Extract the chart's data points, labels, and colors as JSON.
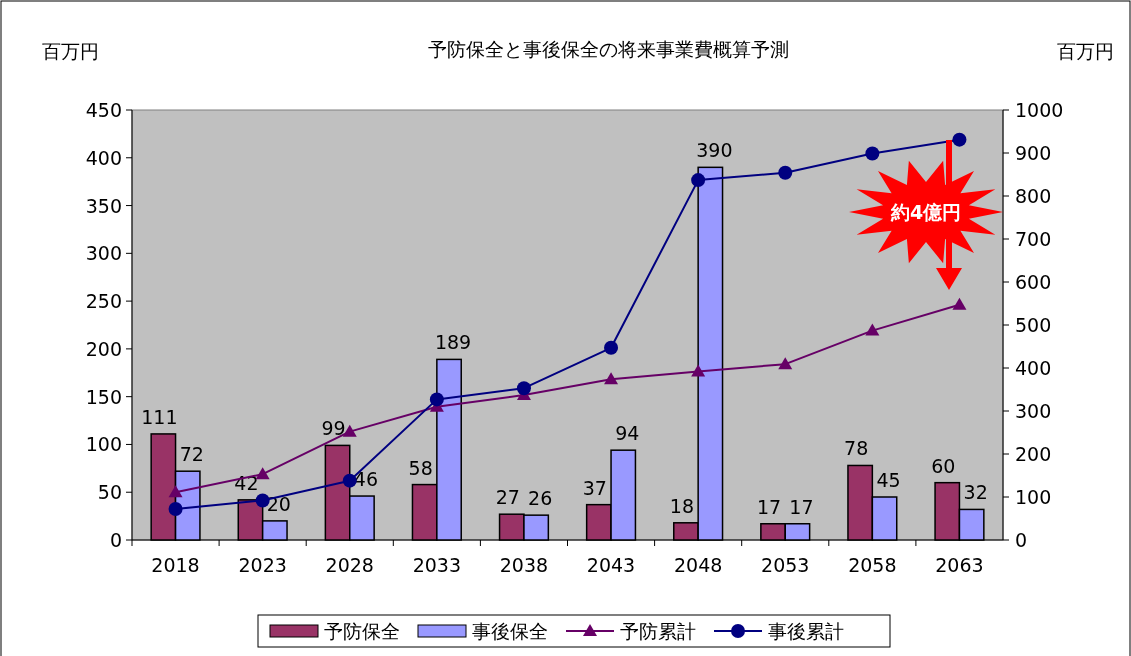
{
  "chart_data": {
    "type": "bar",
    "title": "予防保全と事後保全の将来事業費概算予測",
    "ylabel": "百万円",
    "y2label": "百万円",
    "categories": [
      "2018",
      "2023",
      "2028",
      "2033",
      "2038",
      "2043",
      "2048",
      "2053",
      "2058",
      "2063"
    ],
    "series": [
      {
        "name": "予防保全",
        "color": "#993366",
        "values": [
          111,
          42,
          99,
          58,
          27,
          37,
          18,
          17,
          78,
          60
        ],
        "value_labels": [
          "111",
          "42",
          "99",
          "58",
          "27",
          "37",
          "18",
          "17",
          "78",
          "60"
        ]
      },
      {
        "name": "事後保全",
        "color": "#9999ff",
        "values": [
          72,
          20,
          46,
          189,
          26,
          94,
          390,
          17,
          45,
          32
        ],
        "value_labels": [
          "72",
          "20",
          "46",
          "189",
          "26",
          "94",
          "390",
          "17",
          "45",
          "32"
        ]
      },
      {
        "name": "予防累計",
        "type": "line",
        "axis": "y2",
        "color": "#660066",
        "marker": "triangle",
        "values": [
          111,
          153,
          252,
          310,
          337,
          374,
          392,
          409,
          487,
          547
        ]
      },
      {
        "name": "事後累計",
        "type": "line",
        "axis": "y2",
        "color": "#000080",
        "marker": "circle",
        "values": [
          72,
          92,
          138,
          327,
          353,
          447,
          837,
          854,
          899,
          931
        ]
      }
    ],
    "ylim": [
      0,
      450
    ],
    "yticks": [
      0,
      50,
      100,
      150,
      200,
      250,
      300,
      350,
      400,
      450
    ],
    "y2lim": [
      0,
      1000
    ],
    "y2ticks": [
      0,
      100,
      200,
      300,
      400,
      500,
      600,
      700,
      800,
      900,
      1000
    ],
    "annotations": [
      "約4億円"
    ],
    "legend": "bottom",
    "grid": false
  }
}
